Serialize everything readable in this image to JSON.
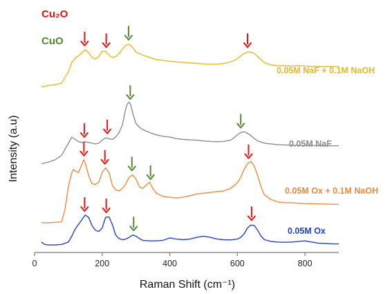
{
  "chart_data": {
    "type": "line",
    "xlabel": "Raman Shift (cm⁻¹)",
    "ylabel": "Intensity (a.u)",
    "xlim": [
      0,
      900
    ],
    "xticks": [
      0,
      200,
      400,
      600,
      800
    ],
    "legend": [
      {
        "name": "Cu₂O",
        "color": "#ee1111",
        "placement": "top-left"
      },
      {
        "name": "CuO",
        "color": "#4f8a2e",
        "placement": "top-left"
      }
    ],
    "series": [
      {
        "name": "0.05M NaF + 0.1M NaOH",
        "color": "#e8b91f",
        "x": [
          20,
          40,
          60,
          80,
          100,
          110,
          120,
          130,
          140,
          150,
          160,
          170,
          180,
          190,
          200,
          210,
          220,
          230,
          240,
          250,
          260,
          270,
          280,
          290,
          300,
          320,
          340,
          360,
          380,
          400,
          420,
          440,
          460,
          480,
          500,
          520,
          540,
          560,
          580,
          600,
          610,
          620,
          630,
          640,
          650,
          660,
          670,
          680,
          700,
          720,
          740,
          760,
          780,
          800,
          820,
          840,
          860,
          880,
          900
        ],
        "y": [
          0.1,
          0.2,
          0.25,
          0.35,
          1.1,
          1.7,
          2.0,
          2.15,
          2.35,
          2.55,
          2.35,
          2.05,
          1.95,
          2.1,
          2.45,
          2.45,
          2.2,
          2.05,
          2.1,
          2.3,
          2.6,
          2.85,
          2.9,
          2.7,
          2.4,
          2.2,
          2.05,
          1.9,
          1.85,
          1.8,
          1.75,
          1.72,
          1.68,
          1.66,
          1.62,
          1.6,
          1.6,
          1.65,
          1.75,
          1.95,
          2.15,
          2.3,
          2.4,
          2.4,
          2.3,
          2.1,
          1.9,
          1.7,
          1.55,
          1.5,
          1.5,
          1.48,
          1.5,
          1.48,
          1.45,
          1.46,
          1.44,
          1.45,
          1.44
        ]
      },
      {
        "name": "0.05M NaF",
        "color": "#8c8c8c",
        "x": [
          20,
          40,
          60,
          80,
          100,
          110,
          120,
          130,
          140,
          150,
          160,
          170,
          180,
          190,
          200,
          210,
          220,
          230,
          240,
          250,
          260,
          270,
          275,
          280,
          285,
          290,
          300,
          310,
          320,
          340,
          360,
          380,
          400,
          420,
          440,
          460,
          480,
          500,
          520,
          540,
          560,
          580,
          590,
          600,
          610,
          620,
          630,
          640,
          650,
          660,
          680,
          700,
          720,
          740,
          760,
          780,
          800,
          820,
          840,
          860,
          880,
          900
        ],
        "y": [
          0.15,
          0.25,
          0.4,
          0.7,
          1.5,
          1.9,
          1.75,
          1.6,
          1.55,
          1.6,
          1.55,
          1.5,
          1.45,
          1.5,
          1.7,
          1.85,
          1.8,
          1.75,
          1.9,
          2.2,
          2.7,
          3.8,
          4.1,
          4.2,
          4.0,
          3.5,
          2.8,
          2.55,
          2.4,
          2.2,
          2.05,
          1.95,
          1.9,
          1.8,
          1.75,
          1.72,
          1.7,
          1.65,
          1.62,
          1.6,
          1.62,
          1.7,
          1.85,
          2.05,
          2.2,
          2.25,
          2.15,
          2.0,
          1.8,
          1.65,
          1.5,
          1.45,
          1.4,
          1.38,
          1.37,
          1.36,
          1.35,
          1.35,
          1.34,
          1.34,
          1.33,
          1.33
        ]
      },
      {
        "name": "0.05M Ox + 0.1M NaOH",
        "color": "#ee8a3a",
        "x": [
          20,
          40,
          60,
          80,
          90,
          100,
          110,
          115,
          120,
          130,
          140,
          145,
          150,
          160,
          170,
          180,
          190,
          200,
          210,
          220,
          230,
          240,
          250,
          260,
          270,
          280,
          290,
          300,
          310,
          320,
          330,
          340,
          350,
          360,
          380,
          400,
          420,
          440,
          460,
          480,
          500,
          520,
          540,
          560,
          580,
          600,
          610,
          620,
          630,
          640,
          650,
          660,
          670,
          680,
          700,
          720,
          740,
          760,
          780,
          800,
          820,
          840,
          860,
          880,
          900
        ],
        "y": [
          0.05,
          0.05,
          0.07,
          0.1,
          0.9,
          2.3,
          3.2,
          3.4,
          3.3,
          3.2,
          3.7,
          4.0,
          3.8,
          3.0,
          2.5,
          2.45,
          2.6,
          3.2,
          3.5,
          3.2,
          2.4,
          2.1,
          2.05,
          2.2,
          2.5,
          2.9,
          3.05,
          2.8,
          2.3,
          2.2,
          2.4,
          2.6,
          2.2,
          1.9,
          1.7,
          1.65,
          1.6,
          1.65,
          1.75,
          1.85,
          1.9,
          1.95,
          2.0,
          2.05,
          2.2,
          2.55,
          2.9,
          3.4,
          3.75,
          3.9,
          3.6,
          3.0,
          2.3,
          1.8,
          1.5,
          1.35,
          1.3,
          1.3,
          1.27,
          1.25,
          1.24,
          1.23,
          1.22,
          1.21,
          1.2
        ]
      },
      {
        "name": "0.05M Ox",
        "color": "#1f3fd9",
        "x": [
          20,
          30,
          40,
          60,
          80,
          100,
          110,
          120,
          130,
          140,
          150,
          160,
          170,
          180,
          190,
          200,
          210,
          220,
          230,
          240,
          250,
          260,
          270,
          280,
          290,
          300,
          310,
          320,
          340,
          360,
          380,
          400,
          420,
          440,
          460,
          480,
          500,
          520,
          540,
          560,
          580,
          600,
          610,
          620,
          630,
          640,
          650,
          660,
          670,
          680,
          700,
          720,
          740,
          760,
          780,
          800,
          820,
          840,
          860,
          880,
          900
        ],
        "y": [
          0.3,
          0.1,
          0.05,
          0.05,
          0.1,
          0.3,
          0.8,
          1.4,
          1.8,
          2.2,
          2.6,
          2.4,
          1.7,
          1.3,
          1.2,
          1.5,
          2.4,
          2.45,
          1.8,
          0.9,
          0.6,
          0.5,
          0.55,
          0.7,
          0.9,
          0.8,
          0.6,
          0.45,
          0.4,
          0.4,
          0.45,
          0.65,
          0.55,
          0.5,
          0.55,
          0.7,
          0.8,
          0.7,
          0.55,
          0.5,
          0.48,
          0.55,
          0.7,
          1.0,
          1.5,
          1.75,
          1.7,
          1.3,
          0.8,
          0.5,
          0.35,
          0.3,
          0.28,
          0.3,
          0.35,
          0.4,
          0.3,
          0.2,
          0.18,
          0.15,
          0.14
        ]
      }
    ],
    "peak_markers": [
      {
        "series": 0,
        "x": 148,
        "color": "#ee1111"
      },
      {
        "series": 0,
        "x": 212,
        "color": "#ee1111"
      },
      {
        "series": 0,
        "x": 278,
        "color": "#4f8a2e"
      },
      {
        "series": 0,
        "x": 630,
        "color": "#ee1111"
      },
      {
        "series": 1,
        "x": 147,
        "color": "#ee1111"
      },
      {
        "series": 1,
        "x": 215,
        "color": "#ee1111"
      },
      {
        "series": 1,
        "x": 283,
        "color": "#4f8a2e"
      },
      {
        "series": 1,
        "x": 610,
        "color": "#4f8a2e"
      },
      {
        "series": 2,
        "x": 146,
        "color": "#ee1111"
      },
      {
        "series": 2,
        "x": 208,
        "color": "#ee1111"
      },
      {
        "series": 2,
        "x": 288,
        "color": "#4f8a2e"
      },
      {
        "series": 2,
        "x": 343,
        "color": "#4f8a2e"
      },
      {
        "series": 2,
        "x": 633,
        "color": "#ee1111"
      },
      {
        "series": 3,
        "x": 148,
        "color": "#ee1111"
      },
      {
        "series": 3,
        "x": 212,
        "color": "#ee1111"
      },
      {
        "series": 3,
        "x": 293,
        "color": "#4f8a2e"
      },
      {
        "series": 3,
        "x": 642,
        "color": "#ee1111"
      }
    ]
  }
}
